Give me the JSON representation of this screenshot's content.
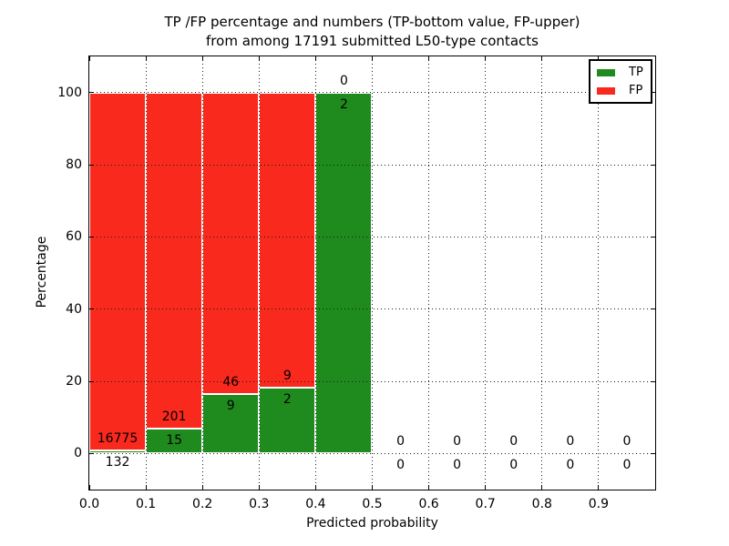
{
  "chart_data": {
    "type": "bar",
    "stacked": true,
    "title_line1": "TP /FP percentage and numbers (TP-bottom value, FP-upper)",
    "title_line2": "from among 17191 submitted L50-type contacts",
    "total_contacts": 17191,
    "xlabel": "Predicted probability",
    "ylabel": "Percentage",
    "xlim": [
      0.0,
      1.0
    ],
    "ylim": [
      -10,
      110
    ],
    "xticks": [
      "0.0",
      "0.1",
      "0.2",
      "0.3",
      "0.4",
      "0.5",
      "0.6",
      "0.7",
      "0.8",
      "0.9"
    ],
    "yticks": [
      0,
      20,
      40,
      60,
      80,
      100
    ],
    "grid_style": "dotted",
    "legend": {
      "position": "upper right",
      "entries": [
        {
          "label": "TP",
          "series": "tp"
        },
        {
          "label": "FP",
          "series": "fp"
        }
      ]
    },
    "colors": {
      "tp": "#1f8b1f",
      "fp": "#fa291d"
    },
    "annotation_scheme": "TP count below green top, FP count above green top",
    "bins": [
      {
        "range": [
          0.0,
          0.1
        ],
        "tp": 132,
        "fp": 16775,
        "tp_percent": 0.78,
        "fp_percent": 99.22
      },
      {
        "range": [
          0.1,
          0.2
        ],
        "tp": 15,
        "fp": 201,
        "tp_percent": 6.94,
        "fp_percent": 93.06
      },
      {
        "range": [
          0.2,
          0.3
        ],
        "tp": 9,
        "fp": 46,
        "tp_percent": 16.36,
        "fp_percent": 83.64
      },
      {
        "range": [
          0.3,
          0.4
        ],
        "tp": 2,
        "fp": 9,
        "tp_percent": 18.18,
        "fp_percent": 81.82
      },
      {
        "range": [
          0.4,
          0.5
        ],
        "tp": 2,
        "fp": 0,
        "tp_percent": 100.0,
        "fp_percent": 0.0
      },
      {
        "range": [
          0.5,
          0.6
        ],
        "tp": 0,
        "fp": 0,
        "tp_percent": 0.0,
        "fp_percent": 0.0
      },
      {
        "range": [
          0.6,
          0.7
        ],
        "tp": 0,
        "fp": 0,
        "tp_percent": 0.0,
        "fp_percent": 0.0
      },
      {
        "range": [
          0.7,
          0.8
        ],
        "tp": 0,
        "fp": 0,
        "tp_percent": 0.0,
        "fp_percent": 0.0
      },
      {
        "range": [
          0.8,
          0.9
        ],
        "tp": 0,
        "fp": 0,
        "tp_percent": 0.0,
        "fp_percent": 0.0
      },
      {
        "range": [
          0.9,
          1.0
        ],
        "tp": 0,
        "fp": 0,
        "tp_percent": 0.0,
        "fp_percent": 0.0
      }
    ]
  }
}
